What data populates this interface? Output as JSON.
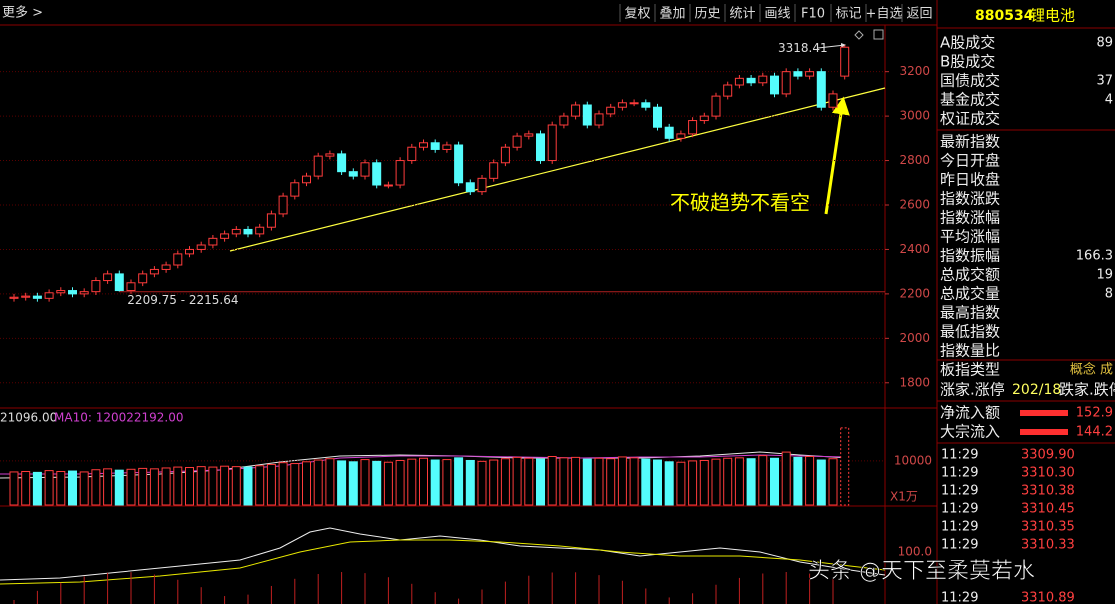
{
  "toolbar": {
    "more": "更多 >",
    "buttons": [
      "复权",
      "叠加",
      "历史",
      "统计",
      "画线",
      "F10",
      "标记",
      "+自选",
      "返回"
    ]
  },
  "chart_data": {
    "type": "candlestick",
    "colors": {
      "up": "#ff3c3c",
      "down": "#54fcfc"
    },
    "open": [
      2180,
      2185,
      2190,
      2180,
      2205,
      2215,
      2200,
      2210,
      2260,
      2290,
      2215,
      2250,
      2290,
      2310,
      2330,
      2380,
      2400,
      2420,
      2450,
      2470,
      2490,
      2470,
      2500,
      2560,
      2640,
      2700,
      2730,
      2820,
      2830,
      2750,
      2730,
      2790,
      2690,
      2690,
      2800,
      2860,
      2880,
      2850,
      2870,
      2700,
      2660,
      2720,
      2790,
      2860,
      2910,
      2920,
      2800,
      2960,
      3000,
      3050,
      2960,
      3010,
      3040,
      3060,
      3060,
      3040,
      2950,
      2900,
      2920,
      2980,
      3000,
      3090,
      3140,
      3170,
      3150,
      3180,
      3100,
      3200,
      3180,
      3200,
      3040,
      3180
    ],
    "high": [
      2200,
      2205,
      2205,
      2220,
      2230,
      2230,
      2225,
      2275,
      2305,
      2305,
      2265,
      2305,
      2325,
      2345,
      2395,
      2415,
      2435,
      2465,
      2485,
      2505,
      2505,
      2515,
      2575,
      2655,
      2715,
      2745,
      2835,
      2845,
      2845,
      2765,
      2805,
      2805,
      2705,
      2815,
      2875,
      2895,
      2895,
      2885,
      2885,
      2715,
      2735,
      2805,
      2875,
      2925,
      2935,
      2935,
      2975,
      3015,
      3065,
      3065,
      3025,
      3055,
      3075,
      3075,
      3075,
      3055,
      2965,
      2935,
      2995,
      3015,
      3105,
      3155,
      3185,
      3185,
      3195,
      3195,
      3215,
      3215,
      3215,
      3215,
      3115,
      3318.41
    ],
    "low": [
      2165,
      2170,
      2165,
      2165,
      2190,
      2185,
      2185,
      2195,
      2245,
      2209.75,
      2200,
      2235,
      2275,
      2295,
      2315,
      2365,
      2385,
      2405,
      2435,
      2455,
      2455,
      2455,
      2485,
      2545,
      2625,
      2685,
      2715,
      2805,
      2735,
      2715,
      2715,
      2675,
      2675,
      2675,
      2785,
      2845,
      2835,
      2835,
      2685,
      2645,
      2645,
      2705,
      2775,
      2845,
      2895,
      2785,
      2785,
      2945,
      2985,
      2945,
      2945,
      2995,
      3025,
      3045,
      3025,
      2935,
      2885,
      2885,
      2905,
      2965,
      2985,
      3075,
      3125,
      3135,
      3135,
      3085,
      3085,
      3165,
      3165,
      3025,
      3025,
      3165
    ],
    "close": [
      2185,
      2190,
      2180,
      2205,
      2215,
      2200,
      2210,
      2260,
      2290,
      2215,
      2250,
      2290,
      2310,
      2330,
      2380,
      2400,
      2420,
      2450,
      2470,
      2490,
      2470,
      2500,
      2560,
      2640,
      2700,
      2730,
      2820,
      2830,
      2750,
      2730,
      2790,
      2690,
      2690,
      2800,
      2860,
      2880,
      2850,
      2870,
      2700,
      2660,
      2720,
      2790,
      2860,
      2910,
      2920,
      2800,
      2960,
      3000,
      3050,
      2960,
      3010,
      3040,
      3060,
      3060,
      3040,
      2950,
      2900,
      2920,
      2980,
      3000,
      3090,
      3140,
      3170,
      3150,
      3180,
      3100,
      3200,
      3180,
      3200,
      3040,
      3100,
      3310
    ],
    "ylim": [
      1700,
      3410
    ],
    "yticks": [
      3200,
      3000,
      2800,
      2600,
      2400,
      2200,
      2000,
      1800
    ],
    "high_label": "3318.41",
    "low_label": "2209.75 - 2215.64",
    "annotation": "不破趋势不看空",
    "volume": {
      "ma5_label": "21096.00",
      "ma10_label": "MA10: 120022192.00",
      "values": [
        7500,
        7600,
        7400,
        7800,
        7600,
        7700,
        7500,
        8000,
        8200,
        7900,
        8100,
        8300,
        8200,
        8400,
        8600,
        8500,
        8700,
        8600,
        8800,
        8700,
        8600,
        8900,
        9200,
        9600,
        9400,
        9800,
        10200,
        10500,
        10000,
        9800,
        10300,
        9900,
        9700,
        10100,
        10400,
        10600,
        10200,
        10300,
        10700,
        10100,
        9900,
        10200,
        10500,
        10800,
        10600,
        10400,
        11000,
        10700,
        10800,
        10400,
        10600,
        10500,
        10900,
        10700,
        10400,
        10200,
        9800,
        9700,
        10000,
        10100,
        10400,
        10600,
        10700,
        10500,
        11200,
        10600,
        12000,
        10800,
        11000,
        10200,
        10500,
        17500
      ],
      "ylim": [
        0,
        22000
      ],
      "yticks": [
        10000
      ],
      "unit": "X1万"
    },
    "indicator": {
      "tick_label": "100.0"
    }
  },
  "side_panel": {
    "code": "880534",
    "name": "锂电池",
    "group1": [
      {
        "label": "A股成交",
        "value": "89"
      },
      {
        "label": "B股成交"
      },
      {
        "label": "国债成交",
        "value": "37"
      },
      {
        "label": "基金成交",
        "value": "4"
      },
      {
        "label": "权证成交"
      }
    ],
    "group2": [
      {
        "label": "最新指数"
      },
      {
        "label": "今日开盘"
      },
      {
        "label": "昨日收盘"
      },
      {
        "label": "指数涨跌"
      },
      {
        "label": "指数涨幅"
      },
      {
        "label": "平均涨幅"
      },
      {
        "label": "指数振幅",
        "value": "166.3"
      },
      {
        "label": "总成交额",
        "value": "19"
      },
      {
        "label": "总成交量",
        "value": "8"
      },
      {
        "label": "最高指数"
      },
      {
        "label": "最低指数"
      },
      {
        "label": "指数量比"
      }
    ],
    "board_type": {
      "label": "板指类型",
      "value": "概念 成"
    },
    "breadth": {
      "label": "涨家.涨停",
      "value": "202/18",
      "label2": "跌家.跌停"
    },
    "flows": [
      {
        "label": "净流入额",
        "value": "152.9"
      },
      {
        "label": "大宗流入",
        "value": "144.2"
      }
    ],
    "ticks": [
      {
        "time": "11:29",
        "price": "3309.90"
      },
      {
        "time": "11:29",
        "price": "3310.30"
      },
      {
        "time": "11:29",
        "price": "3310.38"
      },
      {
        "time": "11:29",
        "price": "3310.45"
      },
      {
        "time": "11:29",
        "price": "3310.35"
      },
      {
        "time": "11:29",
        "price": "3310.33"
      },
      {
        "time": "11:29",
        "price": "3310.89"
      }
    ]
  },
  "watermark": "头条 @天下至柔莫若水"
}
